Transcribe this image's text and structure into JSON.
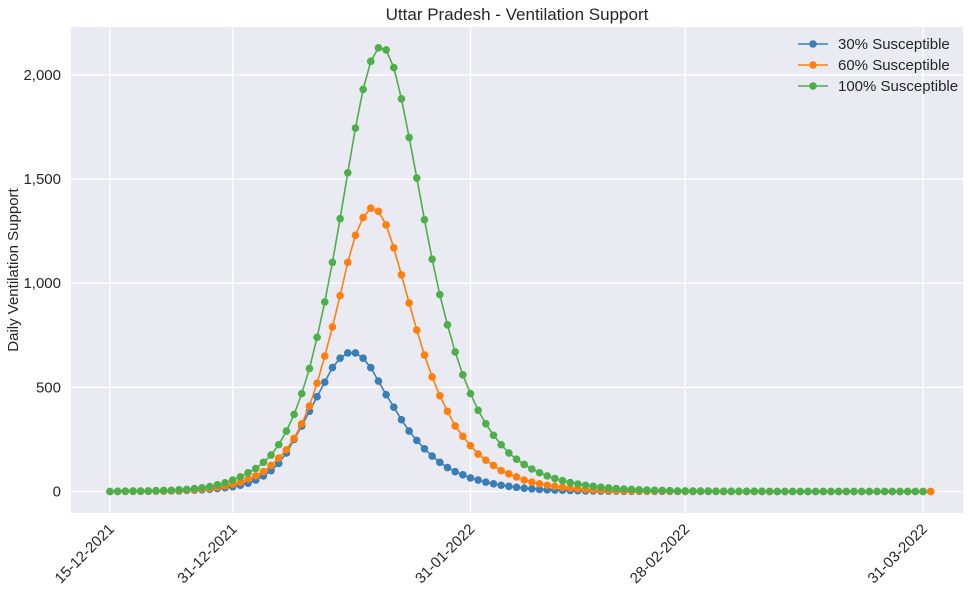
{
  "chart_data": {
    "type": "line",
    "title": "Uttar Pradesh - Ventilation Support",
    "xlabel": "",
    "ylabel": "Daily Ventilation Support",
    "x_start": "15-12-2021",
    "x_end": "31-03-2022",
    "x_ticks": [
      "15-12-2021",
      "31-12-2021",
      "31-01-2022",
      "28-02-2022",
      "31-03-2022"
    ],
    "y_ticks": [
      "0",
      "500",
      "1,000",
      "1,500",
      "2,000"
    ],
    "ylim": [
      -110,
      2230
    ],
    "grid": true,
    "legend_position": "top-right",
    "series": [
      {
        "name": "30% Susceptible",
        "color": "#3a7eb8",
        "values": [
          0,
          0,
          1,
          1,
          1,
          1,
          2,
          2,
          3,
          3,
          5,
          6,
          8,
          11,
          14,
          18,
          23,
          30,
          40,
          55,
          75,
          100,
          135,
          185,
          250,
          315,
          385,
          455,
          525,
          595,
          640,
          665,
          665,
          640,
          595,
          530,
          465,
          405,
          345,
          290,
          245,
          205,
          170,
          140,
          115,
          95,
          80,
          65,
          55,
          45,
          37,
          30,
          25,
          20,
          16,
          13,
          10,
          8,
          7,
          6,
          5,
          4,
          3,
          3,
          2,
          2,
          2,
          1,
          1,
          1,
          1,
          1,
          1,
          1,
          0,
          0,
          0,
          0,
          0,
          0,
          0,
          0,
          0,
          0,
          0,
          0,
          0,
          0,
          0,
          0,
          0,
          0,
          0,
          0,
          0,
          0,
          0,
          0,
          0,
          0,
          0,
          0,
          0,
          0,
          0,
          0,
          0,
          0
        ]
      },
      {
        "name": "60% Susceptible",
        "color": "#ff7f0e",
        "values": [
          0,
          0,
          1,
          1,
          1,
          2,
          2,
          3,
          4,
          5,
          7,
          9,
          12,
          16,
          21,
          27,
          35,
          45,
          60,
          75,
          95,
          125,
          160,
          200,
          255,
          325,
          410,
          520,
          650,
          790,
          940,
          1100,
          1230,
          1315,
          1360,
          1345,
          1280,
          1170,
          1040,
          905,
          775,
          655,
          550,
          460,
          385,
          315,
          265,
          220,
          180,
          150,
          125,
          100,
          85,
          70,
          55,
          45,
          37,
          30,
          25,
          20,
          16,
          13,
          10,
          8,
          7,
          6,
          5,
          4,
          3,
          3,
          2,
          2,
          2,
          1,
          1,
          1,
          1,
          1,
          1,
          1,
          0,
          0,
          0,
          0,
          0,
          0,
          0,
          0,
          0,
          0,
          0,
          0,
          0,
          0,
          0,
          0,
          0,
          0,
          0,
          0,
          0,
          0,
          0,
          0,
          0,
          0,
          0,
          0
        ]
      },
      {
        "name": "100% Susceptible",
        "color": "#4daf4a",
        "values": [
          0,
          1,
          1,
          2,
          2,
          3,
          4,
          5,
          6,
          8,
          10,
          14,
          18,
          24,
          32,
          42,
          55,
          70,
          90,
          110,
          140,
          175,
          225,
          290,
          370,
          470,
          590,
          740,
          910,
          1100,
          1310,
          1530,
          1745,
          1930,
          2065,
          2130,
          2120,
          2035,
          1885,
          1700,
          1505,
          1305,
          1115,
          945,
          800,
          670,
          560,
          470,
          390,
          325,
          270,
          225,
          185,
          155,
          130,
          108,
          90,
          75,
          62,
          52,
          43,
          36,
          30,
          25,
          21,
          17,
          14,
          12,
          10,
          8,
          7,
          6,
          5,
          4,
          3,
          3,
          2,
          2,
          2,
          1,
          1,
          1,
          1,
          1,
          1,
          1,
          0,
          0,
          0,
          0,
          0,
          0,
          0,
          0,
          0,
          0,
          0,
          0,
          0,
          0,
          0,
          0,
          0,
          0,
          0,
          0,
          0
        ]
      }
    ]
  }
}
